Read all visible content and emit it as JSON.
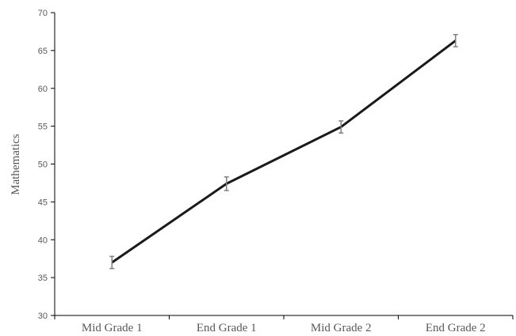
{
  "chart_data": {
    "type": "line",
    "title": "",
    "xlabel": "",
    "ylabel": "Mathematics",
    "ylim": [
      30,
      70
    ],
    "yticks": [
      30,
      35,
      40,
      45,
      50,
      55,
      60,
      65,
      70
    ],
    "categories": [
      "Mid Grade 1",
      "End Grade 1",
      "Mid Grade 2",
      "End Grade 2"
    ],
    "series": [
      {
        "values": [
          37.0,
          47.4,
          54.9,
          66.3
        ],
        "error": [
          0.8,
          0.9,
          0.8,
          0.8
        ]
      }
    ],
    "grid": false,
    "legend": "none",
    "colors": {
      "line": "#1a1a1a",
      "error_bar": "#7f7f7f",
      "axis": "#000000",
      "text": "#595959"
    }
  }
}
